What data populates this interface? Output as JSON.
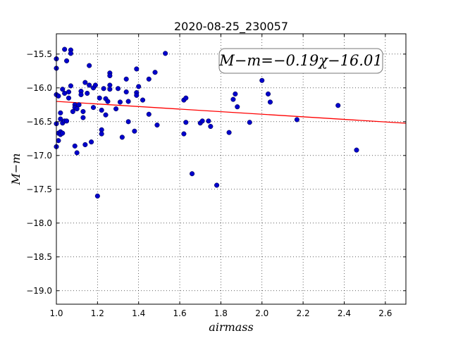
{
  "chart_data": {
    "type": "scatter",
    "title": "2020-08-25_230057",
    "xlabel": "airmass",
    "ylabel": "M−m",
    "xlim": [
      1.0,
      2.7
    ],
    "ylim": [
      -19.2,
      -15.2
    ],
    "y_inverted": true,
    "grid": true,
    "x_ticks": [
      "1.0",
      "1.2",
      "1.4",
      "1.6",
      "1.8",
      "2.0",
      "2.2",
      "2.4",
      "2.6"
    ],
    "y_ticks": [
      "−15.5",
      "−16.0",
      "−16.5",
      "−17.0",
      "−17.5",
      "−18.0",
      "−18.5",
      "−19.0"
    ],
    "annotation": "M−m=−0.19χ−16.01",
    "fit": {
      "slope": -0.19,
      "intercept": -16.01,
      "color": "#ff0000"
    },
    "point_color": "#0000cc",
    "points": [
      [
        1.0,
        -15.57
      ],
      [
        1.0,
        -15.71
      ],
      [
        1.0,
        -16.1
      ],
      [
        1.0,
        -16.53
      ],
      [
        1.0,
        -16.87
      ],
      [
        1.01,
        -16.12
      ],
      [
        1.01,
        -16.67
      ],
      [
        1.01,
        -16.78
      ],
      [
        1.02,
        -16.37
      ],
      [
        1.02,
        -16.46
      ],
      [
        1.02,
        -16.65
      ],
      [
        1.02,
        -16.69
      ],
      [
        1.03,
        -16.02
      ],
      [
        1.03,
        -16.52
      ],
      [
        1.03,
        -16.67
      ],
      [
        1.04,
        -15.43
      ],
      [
        1.04,
        -16.08
      ],
      [
        1.04,
        -16.49
      ],
      [
        1.05,
        -16.49
      ],
      [
        1.05,
        -15.6
      ],
      [
        1.06,
        -16.06
      ],
      [
        1.06,
        -16.15
      ],
      [
        1.07,
        -15.44
      ],
      [
        1.07,
        -15.49
      ],
      [
        1.07,
        -15.97
      ],
      [
        1.08,
        -16.35
      ],
      [
        1.09,
        -16.25
      ],
      [
        1.09,
        -16.29
      ],
      [
        1.09,
        -16.86
      ],
      [
        1.1,
        -16.31
      ],
      [
        1.1,
        -16.96
      ],
      [
        1.11,
        -16.25
      ],
      [
        1.12,
        -16.05
      ],
      [
        1.12,
        -16.1
      ],
      [
        1.13,
        -16.35
      ],
      [
        1.13,
        -16.44
      ],
      [
        1.14,
        -15.92
      ],
      [
        1.14,
        -16.84
      ],
      [
        1.15,
        -16.08
      ],
      [
        1.16,
        -15.96
      ],
      [
        1.16,
        -15.67
      ],
      [
        1.17,
        -16.8
      ],
      [
        1.18,
        -16.0
      ],
      [
        1.18,
        -16.29
      ],
      [
        1.19,
        -15.96
      ],
      [
        1.2,
        -17.6
      ],
      [
        1.21,
        -16.15
      ],
      [
        1.22,
        -16.33
      ],
      [
        1.22,
        -16.62
      ],
      [
        1.22,
        -16.68
      ],
      [
        1.23,
        -16.01
      ],
      [
        1.24,
        -16.16
      ],
      [
        1.24,
        -16.4
      ],
      [
        1.25,
        -16.2
      ],
      [
        1.26,
        -15.78
      ],
      [
        1.26,
        -15.82
      ],
      [
        1.26,
        -15.96
      ],
      [
        1.26,
        -16.02
      ],
      [
        1.29,
        -16.31
      ],
      [
        1.3,
        -16.01
      ],
      [
        1.31,
        -16.21
      ],
      [
        1.32,
        -16.73
      ],
      [
        1.34,
        -15.87
      ],
      [
        1.34,
        -16.06
      ],
      [
        1.35,
        -16.2
      ],
      [
        1.35,
        -16.5
      ],
      [
        1.38,
        -16.64
      ],
      [
        1.39,
        -16.07
      ],
      [
        1.39,
        -16.11
      ],
      [
        1.39,
        -15.72
      ],
      [
        1.4,
        -15.98
      ],
      [
        1.42,
        -16.18
      ],
      [
        1.45,
        -15.87
      ],
      [
        1.45,
        -16.39
      ],
      [
        1.48,
        -15.77
      ],
      [
        1.49,
        -16.55
      ],
      [
        1.53,
        -15.49
      ],
      [
        1.62,
        -16.68
      ],
      [
        1.62,
        -16.18
      ],
      [
        1.63,
        -16.15
      ],
      [
        1.63,
        -16.51
      ],
      [
        1.66,
        -17.27
      ],
      [
        1.7,
        -16.52
      ],
      [
        1.71,
        -16.49
      ],
      [
        1.74,
        -16.49
      ],
      [
        1.75,
        -16.57
      ],
      [
        1.78,
        -17.44
      ],
      [
        1.84,
        -16.66
      ],
      [
        1.86,
        -16.17
      ],
      [
        1.87,
        -16.09
      ],
      [
        1.88,
        -16.28
      ],
      [
        1.94,
        -16.51
      ],
      [
        2.0,
        -15.89
      ],
      [
        2.03,
        -16.09
      ],
      [
        2.04,
        -16.21
      ],
      [
        2.17,
        -16.47
      ],
      [
        2.37,
        -16.26
      ],
      [
        2.46,
        -16.92
      ]
    ]
  }
}
